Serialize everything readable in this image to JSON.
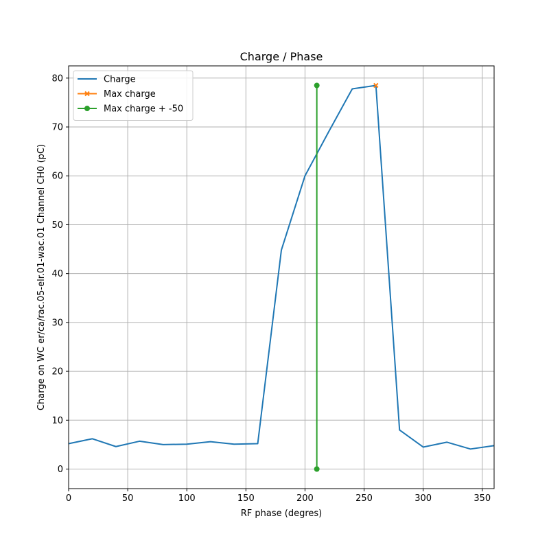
{
  "chart_data": {
    "type": "line",
    "title": "Charge / Phase",
    "xlabel": "RF phase (degres)",
    "ylabel": "Charge on WC er/ca/rac.05-elr.01-wac.01 Channel CH0 (pC)",
    "xlim": [
      0,
      360
    ],
    "ylim": [
      -4,
      82.5
    ],
    "xticks": [
      0,
      50,
      100,
      150,
      200,
      250,
      300,
      350
    ],
    "yticks": [
      0,
      10,
      20,
      30,
      40,
      50,
      60,
      70,
      80
    ],
    "grid": true,
    "legend_position": "top-left",
    "series": [
      {
        "name": "Charge",
        "color": "#1f77b4",
        "marker": "none",
        "x": [
          0,
          20,
          40,
          60,
          80,
          100,
          120,
          140,
          160,
          180,
          200,
          220,
          240,
          260,
          280,
          300,
          320,
          340,
          360
        ],
        "y": [
          5.2,
          6.2,
          4.6,
          5.7,
          5.0,
          5.1,
          5.6,
          5.1,
          5.2,
          44.8,
          60.0,
          69.0,
          77.8,
          78.5,
          8.0,
          4.5,
          5.5,
          4.1,
          4.8
        ]
      },
      {
        "name": "Max charge",
        "color": "#ff7f0e",
        "marker": "x",
        "x": [
          260
        ],
        "y": [
          78.5
        ]
      },
      {
        "name": "Max charge + -50",
        "color": "#2ca02c",
        "marker": "o",
        "x": [
          210,
          210
        ],
        "y": [
          0,
          78.5
        ]
      }
    ]
  }
}
